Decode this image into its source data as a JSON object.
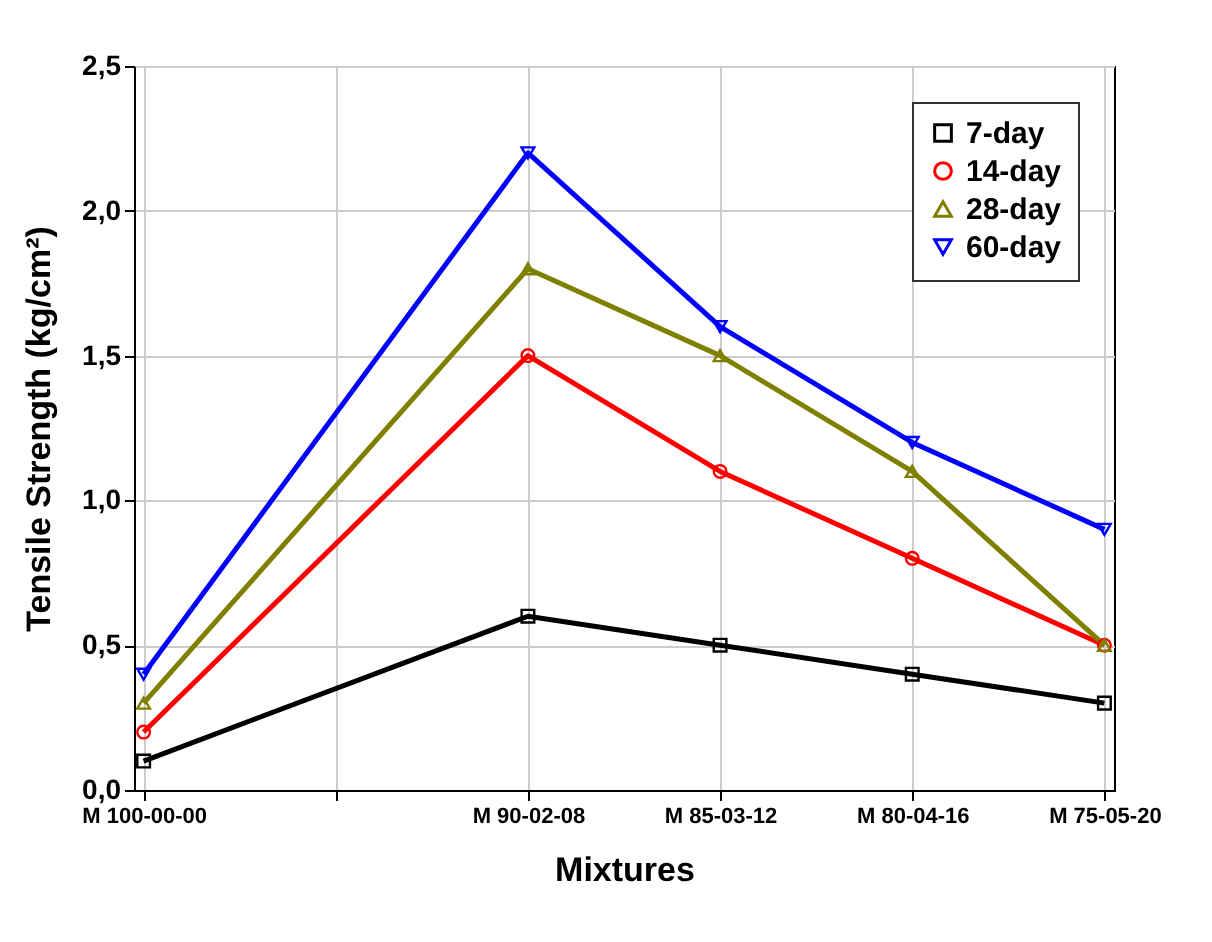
{
  "chart_data": {
    "type": "line",
    "xlabel": "Mixtures",
    "ylabel": "Tensile Strength  (kg/cm²)",
    "categories": [
      "M 100-00-00",
      null,
      "M 90-02-08",
      "M 85-03-12",
      "M 80-04-16",
      "M 75-05-20"
    ],
    "series": [
      {
        "name": "7-day",
        "color": "#000000",
        "marker": "square",
        "values": [
          0.1,
          null,
          0.6,
          0.5,
          0.4,
          0.3
        ]
      },
      {
        "name": "14-day",
        "color": "#ff0000",
        "marker": "circle",
        "values": [
          0.2,
          null,
          1.5,
          1.1,
          0.8,
          0.5
        ]
      },
      {
        "name": "28-day",
        "color": "#808000",
        "marker": "triangle",
        "values": [
          0.3,
          null,
          1.8,
          1.5,
          1.1,
          0.5
        ]
      },
      {
        "name": "60-day",
        "color": "#0000ff",
        "marker": "triangle-down",
        "values": [
          0.4,
          null,
          2.2,
          1.6,
          1.2,
          0.9
        ]
      }
    ],
    "ylim": [
      0,
      2.5
    ],
    "yticks": [
      {
        "value": 0,
        "label": "0,0"
      },
      {
        "value": 0.5,
        "label": "0,5"
      },
      {
        "value": 1,
        "label": "1,0"
      },
      {
        "value": 1.5,
        "label": "1,5"
      },
      {
        "value": 2,
        "label": "2,0"
      },
      {
        "value": 2.5,
        "label": "2,5"
      }
    ],
    "grid": true,
    "legend": "top right",
    "line_style": "solid"
  }
}
